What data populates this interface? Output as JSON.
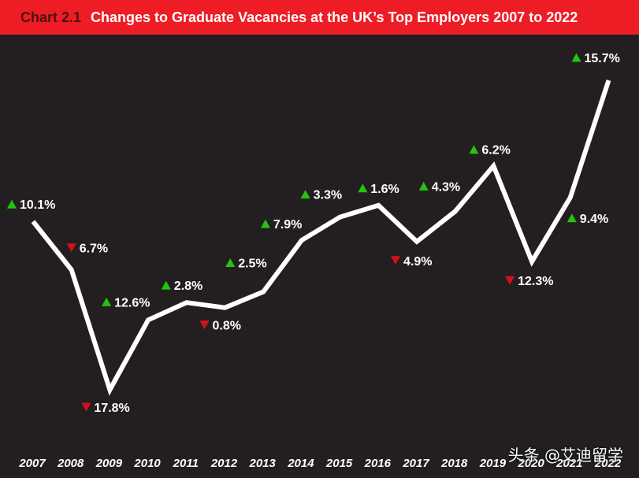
{
  "header": {
    "chart_number": "Chart 2.1",
    "title": "Changes to Graduate Vacancies at the UK’s Top Employers 2007 to 2022"
  },
  "watermark": "头条 @艾迪留学",
  "colors": {
    "background": "#231f20",
    "header": "#ee1c25",
    "line": "#ffffff",
    "increase": "#22c40f",
    "decrease": "#d21219"
  },
  "chart_data": {
    "type": "line",
    "title": "Changes to Graduate Vacancies at the UK’s Top Employers 2007 to 2022",
    "xlabel": "",
    "ylabel": "",
    "grid": false,
    "legend": "none",
    "categories": [
      "2007",
      "2008",
      "2009",
      "2010",
      "2011",
      "2012",
      "2013",
      "2014",
      "2015",
      "2016",
      "2017",
      "2018",
      "2019",
      "2020",
      "2021",
      "2022"
    ],
    "series": [
      {
        "values": [
          10.1,
          -6.7,
          -17.8,
          12.6,
          2.8,
          -0.8,
          2.5,
          7.9,
          3.3,
          1.6,
          -4.9,
          4.3,
          6.2,
          -12.3,
          9.4,
          15.7
        ],
        "labels": [
          "10.1%",
          "6.7%",
          "17.8%",
          "12.6%",
          "2.8%",
          "0.8%",
          "2.5%",
          "7.9%",
          "3.3%",
          "1.6%",
          "4.9%",
          "4.3%",
          "6.2%",
          "12.3%",
          "9.4%",
          "15.7%"
        ],
        "direction": [
          "up",
          "down",
          "down",
          "up",
          "up",
          "down",
          "up",
          "up",
          "up",
          "up",
          "down",
          "up",
          "up",
          "down",
          "up",
          "up"
        ]
      }
    ]
  }
}
